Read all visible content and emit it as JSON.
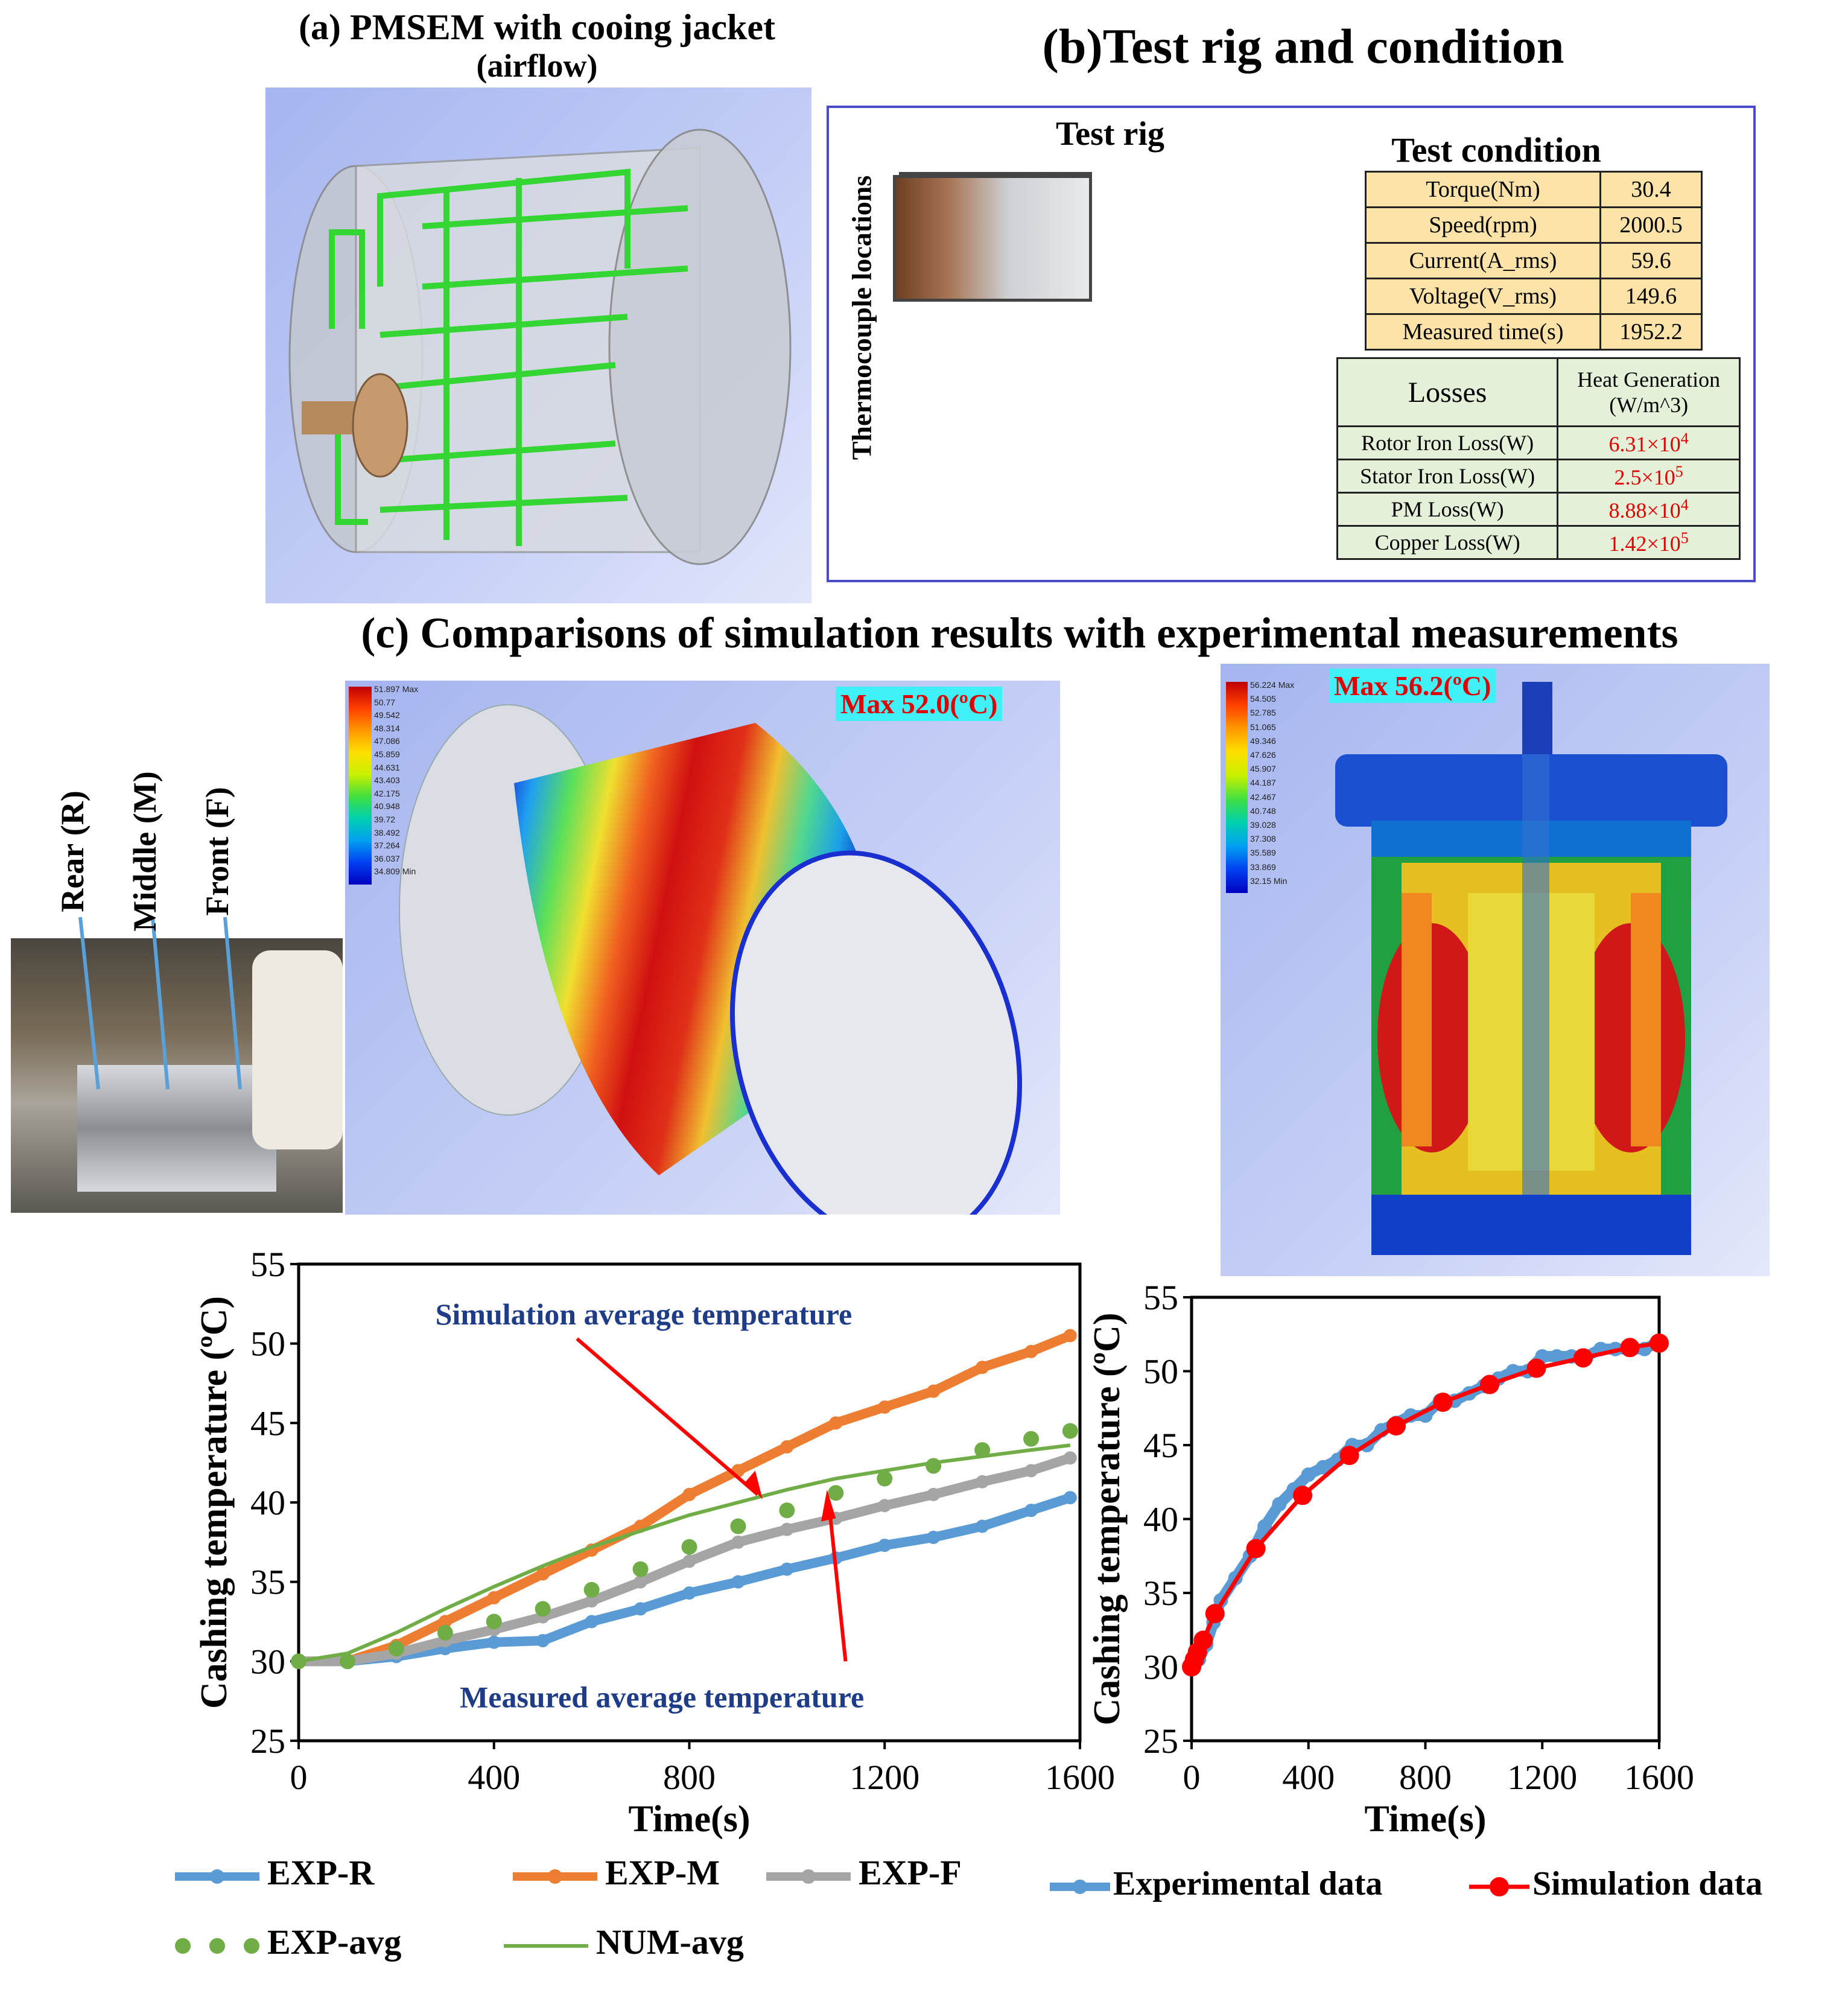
{
  "panel_a": {
    "title_line1": "(a) PMSEM with cooing jacket",
    "title_line2": "(airflow)"
  },
  "panel_b": {
    "title": "(b)Test rig and condition",
    "test_rig_label": "Test rig",
    "thermocouple_label": "Thermocouple locations",
    "test_condition_title": "Test condition",
    "conditions": [
      {
        "name": "Torque(Nm)",
        "value": "30.4"
      },
      {
        "name": "Speed(rpm)",
        "value": "2000.5"
      },
      {
        "name": "Current(A_rms)",
        "value": "59.6"
      },
      {
        "name": "Voltage(V_rms)",
        "value": "149.6"
      },
      {
        "name": "Measured time(s)",
        "value": "1952.2"
      }
    ],
    "losses_header": "Losses",
    "heat_header_line1": "Heat Generation",
    "heat_header_line2": "(W/m^3)",
    "losses": [
      {
        "name": "Rotor Iron Loss(W)",
        "mant": "6.31×10",
        "exp": "4"
      },
      {
        "name": "Stator Iron Loss(W)",
        "mant": "2.5×10",
        "exp": "5"
      },
      {
        "name": "PM Loss(W)",
        "mant": "8.88×10",
        "exp": "4"
      },
      {
        "name": "Copper Loss(W)",
        "mant": "1.42×10",
        "exp": "5"
      }
    ]
  },
  "panel_c": {
    "title": "(c) Comparisons of simulation results with experimental measurements",
    "locations": [
      "Rear (R)",
      "Middle (M)",
      "Front (F)"
    ],
    "contour1": {
      "max_label": "Max 52.0(ºC)",
      "legend_max": "51.897 Max",
      "legend_min": "34.809 Min",
      "legend_values": [
        "50.77",
        "49.542",
        "48.314",
        "47.086",
        "45.859",
        "44.631",
        "43.403",
        "42.175",
        "40.948",
        "39.72",
        "38.492",
        "37.264",
        "36.037"
      ]
    },
    "contour2": {
      "max_label": "Max 56.2(ºC)",
      "legend_max": "56.224 Max",
      "legend_min": "32.15 Min",
      "legend_values": [
        "54.505",
        "52.785",
        "51.065",
        "49.346",
        "47.626",
        "45.907",
        "44.187",
        "42.467",
        "40.748",
        "39.028",
        "37.308",
        "35.589",
        "33.869"
      ]
    },
    "colors": {
      "exp_r": "#5b9bd5",
      "exp_m": "#ed7d31",
      "exp_f": "#a5a5a5",
      "exp_avg": "#70ad47",
      "num_avg": "#70ad47",
      "sim": "#ff0000",
      "annotation": "#1f3c88"
    }
  },
  "chart_data": [
    {
      "type": "line",
      "xlabel": "Time(s)",
      "ylabel": "Cashing temperature (ºC)",
      "xlim": [
        0,
        1600
      ],
      "ylim": [
        25,
        55
      ],
      "xticks": [
        "0",
        "400",
        "800",
        "1200",
        "1600"
      ],
      "yticks": [
        "25",
        "30",
        "35",
        "40",
        "45",
        "50",
        "55"
      ],
      "annotations": [
        "Simulation average temperature",
        "Measured average temperature"
      ],
      "series": [
        {
          "name": "EXP-R",
          "x": [
            0,
            100,
            200,
            300,
            400,
            500,
            600,
            700,
            800,
            900,
            1000,
            1100,
            1200,
            1300,
            1400,
            1500,
            1580
          ],
          "y": [
            30.0,
            30.0,
            30.3,
            30.8,
            31.2,
            31.3,
            32.5,
            33.3,
            34.3,
            35.0,
            35.8,
            36.5,
            37.3,
            37.8,
            38.5,
            39.5,
            40.3
          ]
        },
        {
          "name": "EXP-M",
          "x": [
            0,
            100,
            200,
            300,
            400,
            500,
            600,
            700,
            800,
            900,
            1000,
            1100,
            1200,
            1300,
            1400,
            1500,
            1580
          ],
          "y": [
            30.0,
            30.0,
            31.0,
            32.5,
            34.0,
            35.5,
            37.0,
            38.5,
            40.5,
            42.0,
            43.5,
            45.0,
            46.0,
            47.0,
            48.5,
            49.5,
            50.5
          ]
        },
        {
          "name": "EXP-F",
          "x": [
            0,
            100,
            200,
            300,
            400,
            500,
            600,
            700,
            800,
            900,
            1000,
            1100,
            1200,
            1300,
            1400,
            1500,
            1580
          ],
          "y": [
            30.0,
            30.0,
            30.5,
            31.3,
            32.0,
            32.8,
            33.8,
            35.0,
            36.3,
            37.5,
            38.3,
            39.0,
            39.8,
            40.5,
            41.3,
            42.0,
            42.8
          ]
        },
        {
          "name": "EXP-avg",
          "x": [
            0,
            100,
            200,
            300,
            400,
            500,
            600,
            700,
            800,
            900,
            1000,
            1100,
            1200,
            1300,
            1400,
            1500,
            1580
          ],
          "y": [
            30.0,
            30.0,
            30.8,
            31.8,
            32.5,
            33.3,
            34.5,
            35.8,
            37.2,
            38.5,
            39.5,
            40.6,
            41.5,
            42.3,
            43.3,
            44.0,
            44.5
          ]
        },
        {
          "name": "NUM-avg",
          "x": [
            0,
            100,
            200,
            300,
            400,
            500,
            600,
            700,
            800,
            900,
            1000,
            1100,
            1200,
            1300,
            1400,
            1500,
            1580
          ],
          "y": [
            30.0,
            30.5,
            31.8,
            33.3,
            34.7,
            36.0,
            37.2,
            38.2,
            39.2,
            40.0,
            40.8,
            41.5,
            42.0,
            42.5,
            42.9,
            43.3,
            43.6
          ]
        }
      ],
      "legend_position": "bottom"
    },
    {
      "type": "line",
      "xlabel": "Time(s)",
      "ylabel": "Cashing temperature (ºC)",
      "xlim": [
        0,
        1600
      ],
      "ylim": [
        25,
        55
      ],
      "xticks": [
        "0",
        "400",
        "800",
        "1200",
        "1600"
      ],
      "yticks": [
        "25",
        "30",
        "35",
        "40",
        "45",
        "50",
        "55"
      ],
      "series": [
        {
          "name": "Experimental data",
          "x": [
            0,
            25,
            50,
            75,
            100,
            150,
            200,
            250,
            300,
            350,
            400,
            450,
            500,
            550,
            600,
            650,
            700,
            750,
            800,
            850,
            900,
            950,
            1000,
            1050,
            1100,
            1150,
            1200,
            1250,
            1300,
            1350,
            1400,
            1450,
            1500,
            1550,
            1600
          ],
          "y": [
            30,
            30.5,
            31.5,
            33,
            34.5,
            36,
            37.5,
            39.5,
            41,
            42,
            43,
            43.5,
            44,
            45,
            45,
            46,
            46.5,
            47,
            47,
            48,
            48,
            48.5,
            49,
            49.5,
            50,
            50,
            51,
            51,
            51,
            51,
            51.5,
            51.5,
            51.5,
            51.5,
            52
          ]
        },
        {
          "name": "Simulation data",
          "x": [
            0,
            10,
            20,
            40,
            80,
            220,
            380,
            540,
            700,
            860,
            1020,
            1180,
            1340,
            1500,
            1600
          ],
          "y": [
            30.0,
            30.5,
            31.0,
            31.8,
            33.6,
            38.0,
            41.6,
            44.3,
            46.3,
            47.9,
            49.1,
            50.2,
            50.9,
            51.6,
            51.9
          ]
        }
      ],
      "legend_position": "bottom"
    }
  ]
}
